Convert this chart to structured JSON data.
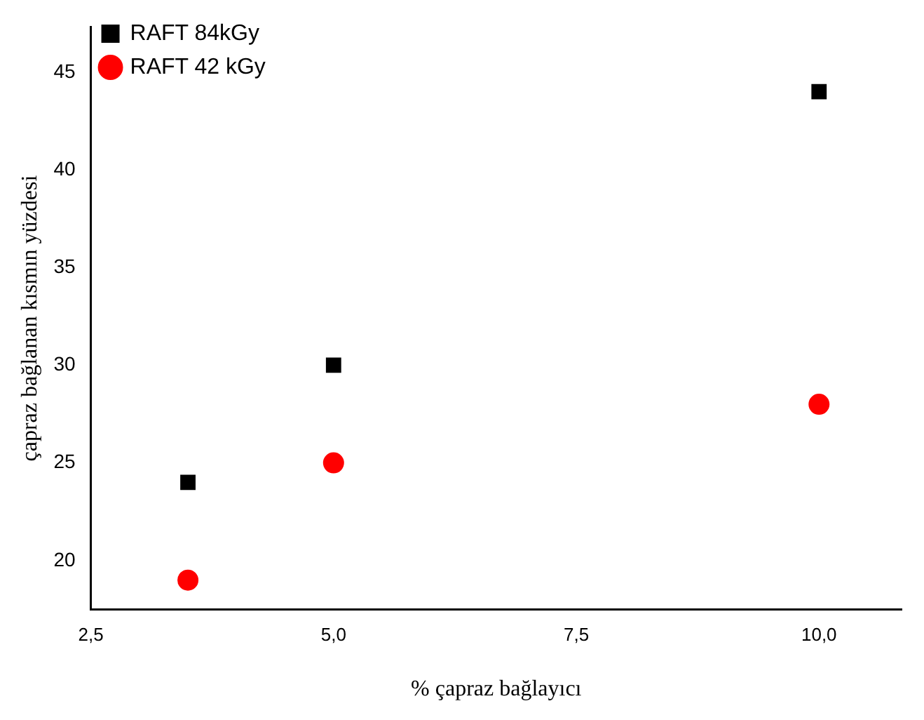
{
  "chart_data": {
    "type": "scatter",
    "xlabel": "% çapraz bağlayıcı",
    "ylabel": "çapraz bağlanan kısmın yüzdesi",
    "xlim": [
      2.5,
      10.85
    ],
    "xticks": [
      {
        "value": 2.5,
        "label": "2,5"
      },
      {
        "value": 5,
        "label": "5,0"
      },
      {
        "value": 7.5,
        "label": "7,5"
      },
      {
        "value": 10,
        "label": "10,0"
      }
    ],
    "ylim": [
      17.5,
      47.3
    ],
    "yticks": [
      20,
      25,
      30,
      35,
      40,
      45
    ],
    "grid": false,
    "legend": "top left",
    "series": [
      {
        "name": "RAFT 84kGy",
        "color": "#000000",
        "marker": "square",
        "x": [
          3.5,
          5,
          10
        ],
        "values": [
          24,
          30,
          44
        ]
      },
      {
        "name": "RAFT 42 kGy",
        "color": "#ff0000",
        "marker": "circle",
        "x": [
          3.5,
          5,
          10
        ],
        "values": [
          19,
          25,
          28
        ]
      }
    ]
  }
}
